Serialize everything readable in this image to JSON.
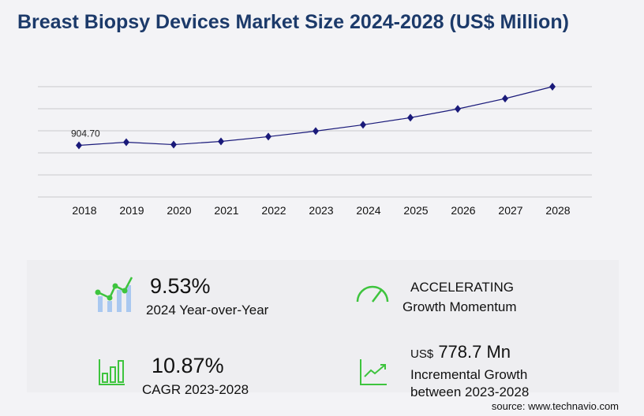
{
  "title": "Breast Biopsy Devices Market Size 2024-2028 (US$ Million)",
  "chart_data": {
    "type": "line",
    "title": "Breast Biopsy Devices Market Size 2024-2028 (US$ Million)",
    "categories": [
      "2018",
      "2019",
      "2020",
      "2021",
      "2022",
      "2023",
      "2024",
      "2025",
      "2026",
      "2027",
      "2028"
    ],
    "values": [
      904.7,
      960,
      918,
      974,
      1058,
      1155,
      1265,
      1390,
      1544,
      1725,
      1934
    ],
    "data_labels": {
      "2018": "904.70"
    },
    "ylim": [
      0,
      1934
    ],
    "grid": true,
    "line_color": "#1a1a7a"
  },
  "stats": {
    "yoy_value": "9.53%",
    "yoy_label": "2024 Year-over-Year",
    "momentum_value": "ACCELERATING",
    "momentum_label": "Growth Momentum",
    "cagr_value": "10.87%",
    "cagr_label": "CAGR 2023-2028",
    "incr_prefix": "US$",
    "incr_value": "778.7 Mn",
    "incr_label1": "Incremental Growth",
    "incr_label2": "between 2023-2028"
  },
  "source": "source: www.technavio.com",
  "colors": {
    "accent": "#3ec43e",
    "title": "#1c3a6a",
    "bars": "#a9c8f0"
  }
}
